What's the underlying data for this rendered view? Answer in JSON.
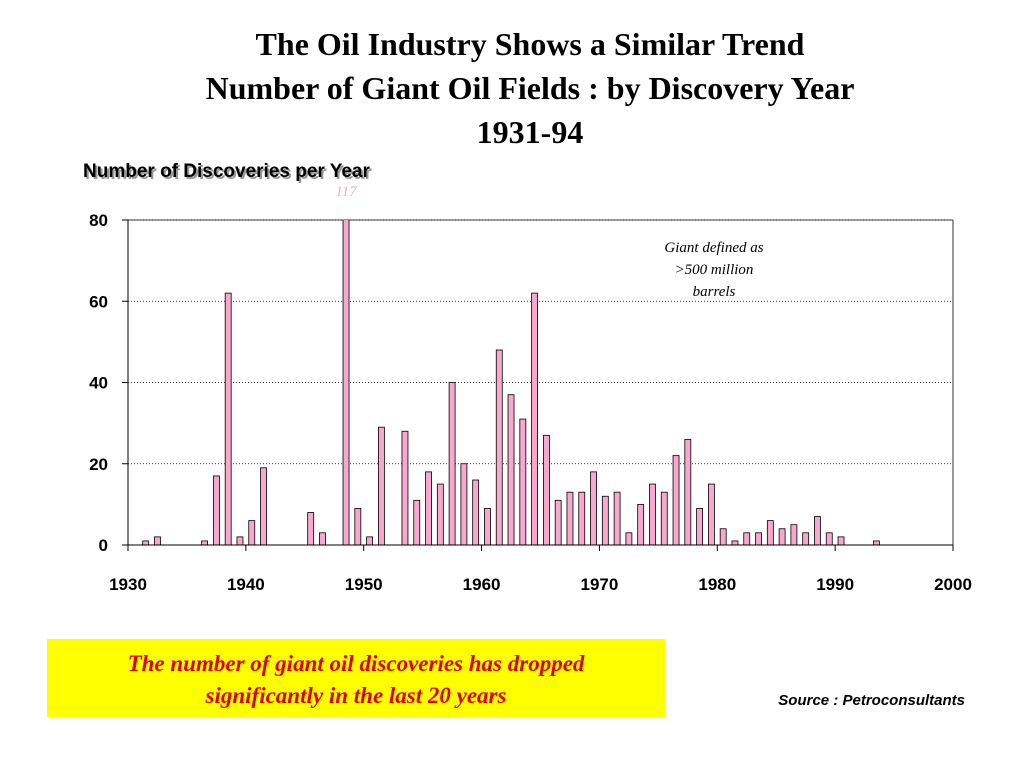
{
  "chart_data": {
    "type": "bar",
    "title_lines": [
      "The Oil Industry Shows a Similar Trend",
      "Number of Giant Oil Fields : by Discovery Year",
      "1931-94"
    ],
    "ylabel": "Number of Discoveries per Year",
    "x": [
      1931,
      1932,
      1936,
      1937,
      1938,
      1939,
      1940,
      1941,
      1945,
      1946,
      1948,
      1949,
      1950,
      1951,
      1953,
      1954,
      1955,
      1956,
      1957,
      1958,
      1959,
      1960,
      1961,
      1962,
      1963,
      1964,
      1965,
      1966,
      1967,
      1968,
      1969,
      1970,
      1971,
      1972,
      1973,
      1974,
      1975,
      1976,
      1977,
      1978,
      1979,
      1980,
      1981,
      1982,
      1983,
      1984,
      1985,
      1986,
      1987,
      1988,
      1989,
      1990,
      1993
    ],
    "values": [
      1,
      2,
      1,
      17,
      62,
      2,
      6,
      19,
      8,
      3,
      117,
      9,
      2,
      29,
      28,
      11,
      18,
      15,
      40,
      20,
      16,
      9,
      48,
      37,
      31,
      62,
      27,
      11,
      13,
      13,
      18,
      12,
      13,
      3,
      10,
      15,
      13,
      22,
      26,
      9,
      15,
      4,
      1,
      3,
      3,
      6,
      4,
      5,
      3,
      7,
      3,
      2,
      1
    ],
    "value_labels": [
      null,
      null,
      null,
      null,
      null,
      null,
      null,
      null,
      null,
      null,
      "117",
      null,
      null,
      null,
      null,
      null,
      null,
      null,
      null,
      null,
      null,
      null,
      null,
      null,
      null,
      null,
      null,
      null,
      null,
      null,
      null,
      null,
      null,
      null,
      null,
      null,
      null,
      null,
      null,
      null,
      null,
      null,
      null,
      null,
      null,
      null,
      null,
      null,
      null,
      null,
      null,
      null,
      null
    ],
    "color": "#f7a8cc",
    "xlim": [
      1930,
      2000
    ],
    "xticks": [
      1930,
      1940,
      1950,
      1960,
      1970,
      1980,
      1990,
      2000
    ],
    "ylim": [
      0,
      80
    ],
    "yticks": [
      0,
      20,
      40,
      60,
      80
    ],
    "grid": true,
    "annotation_lines": [
      "Giant defined as",
      ">500 million",
      "barrels"
    ],
    "note_lines": [
      "The number of giant oil discoveries has dropped",
      "significantly in the last 20 years"
    ],
    "source": "Source : Petroconsultants"
  }
}
